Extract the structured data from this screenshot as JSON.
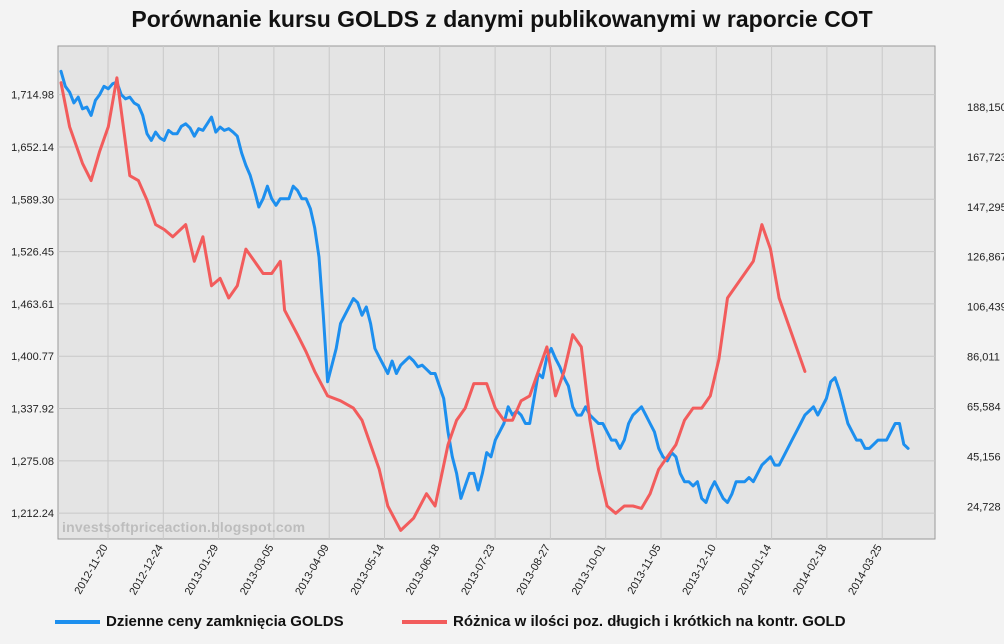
{
  "chart_data": {
    "type": "line",
    "title": "Porównanie kursu GOLDS z danymi publikowanymi w raporcie COT",
    "watermark": "investsoftpriceaction.blogspot.com",
    "x_labels": [
      "2012-11-20",
      "2012-12-24",
      "2013-01-29",
      "2013-03-05",
      "2013-04-09",
      "2013-05-14",
      "2013-06-18",
      "2013-07-23",
      "2013-08-27",
      "2013-10-01",
      "2013-11-05",
      "2013-12-10",
      "2014-01-14",
      "2014-02-18",
      "2014-03-25"
    ],
    "y_left_ticks": [
      "1,212.24",
      "1,275.08",
      "1,337.92",
      "1,400.77",
      "1,463.61",
      "1,526.45",
      "1,589.30",
      "1,652.14",
      "1,714.98"
    ],
    "y_left_range": [
      1181.2,
      1773.4
    ],
    "y_right_ticks": [
      "24,728",
      "45,156",
      "65,584",
      "86,011",
      "106,439",
      "126,867",
      "147,295",
      "167,723",
      "188,150"
    ],
    "y_right_range": [
      11500,
      213000
    ],
    "colors": {
      "gold": "#1d8fee",
      "cot": "#f25c5c"
    },
    "series": [
      {
        "name": "Dzienne ceny zamknięcia GOLDS",
        "axis": "left",
        "points": [
          [
            0,
            1743
          ],
          [
            1,
            1725
          ],
          [
            2,
            1718
          ],
          [
            3,
            1705
          ],
          [
            4,
            1712
          ],
          [
            5,
            1698
          ],
          [
            6,
            1700
          ],
          [
            7,
            1690
          ],
          [
            8,
            1708
          ],
          [
            9,
            1715
          ],
          [
            10,
            1725
          ],
          [
            11,
            1722
          ],
          [
            12,
            1728
          ],
          [
            13,
            1730
          ],
          [
            14,
            1715
          ],
          [
            15,
            1710
          ],
          [
            16,
            1712
          ],
          [
            17,
            1705
          ],
          [
            18,
            1702
          ],
          [
            19,
            1690
          ],
          [
            20,
            1668
          ],
          [
            21,
            1660
          ],
          [
            22,
            1670
          ],
          [
            23,
            1663
          ],
          [
            24,
            1660
          ],
          [
            25,
            1672
          ],
          [
            26,
            1668
          ],
          [
            27,
            1668
          ],
          [
            28,
            1677
          ],
          [
            29,
            1680
          ],
          [
            30,
            1675
          ],
          [
            31,
            1665
          ],
          [
            32,
            1674
          ],
          [
            33,
            1672
          ],
          [
            34,
            1680
          ],
          [
            35,
            1688
          ],
          [
            36,
            1670
          ],
          [
            37,
            1676
          ],
          [
            38,
            1672
          ],
          [
            39,
            1674
          ],
          [
            40,
            1670
          ],
          [
            41,
            1665
          ],
          [
            42,
            1645
          ],
          [
            43,
            1630
          ],
          [
            44,
            1618
          ],
          [
            45,
            1600
          ],
          [
            46,
            1580
          ],
          [
            47,
            1590
          ],
          [
            48,
            1605
          ],
          [
            49,
            1590
          ],
          [
            50,
            1582
          ],
          [
            51,
            1590
          ],
          [
            52,
            1590
          ],
          [
            53,
            1590
          ],
          [
            54,
            1605
          ],
          [
            55,
            1600
          ],
          [
            56,
            1590
          ],
          [
            57,
            1590
          ],
          [
            58,
            1578
          ],
          [
            59,
            1555
          ],
          [
            60,
            1520
          ],
          [
            61,
            1450
          ],
          [
            62,
            1370
          ],
          [
            63,
            1390
          ],
          [
            64,
            1410
          ],
          [
            65,
            1440
          ],
          [
            66,
            1450
          ],
          [
            67,
            1460
          ],
          [
            68,
            1470
          ],
          [
            69,
            1465
          ],
          [
            70,
            1450
          ],
          [
            71,
            1460
          ],
          [
            72,
            1440
          ],
          [
            73,
            1410
          ],
          [
            74,
            1400
          ],
          [
            75,
            1390
          ],
          [
            76,
            1380
          ],
          [
            77,
            1395
          ],
          [
            78,
            1380
          ],
          [
            79,
            1390
          ],
          [
            80,
            1395
          ],
          [
            81,
            1400
          ],
          [
            82,
            1395
          ],
          [
            83,
            1388
          ],
          [
            84,
            1390
          ],
          [
            85,
            1385
          ],
          [
            86,
            1380
          ],
          [
            87,
            1380
          ],
          [
            88,
            1365
          ],
          [
            89,
            1350
          ],
          [
            90,
            1310
          ],
          [
            91,
            1280
          ],
          [
            92,
            1260
          ],
          [
            93,
            1230
          ],
          [
            94,
            1245
          ],
          [
            95,
            1260
          ],
          [
            96,
            1260
          ],
          [
            97,
            1240
          ],
          [
            98,
            1260
          ],
          [
            99,
            1285
          ],
          [
            100,
            1280
          ],
          [
            101,
            1300
          ],
          [
            102,
            1310
          ],
          [
            103,
            1320
          ],
          [
            104,
            1340
          ],
          [
            105,
            1330
          ],
          [
            106,
            1335
          ],
          [
            107,
            1330
          ],
          [
            108,
            1320
          ],
          [
            109,
            1320
          ],
          [
            110,
            1350
          ],
          [
            111,
            1380
          ],
          [
            112,
            1375
          ],
          [
            113,
            1400
          ],
          [
            114,
            1410
          ],
          [
            115,
            1398
          ],
          [
            116,
            1388
          ],
          [
            117,
            1375
          ],
          [
            118,
            1365
          ],
          [
            119,
            1340
          ],
          [
            120,
            1330
          ],
          [
            121,
            1330
          ],
          [
            122,
            1340
          ],
          [
            123,
            1330
          ],
          [
            124,
            1325
          ],
          [
            125,
            1320
          ],
          [
            126,
            1320
          ],
          [
            127,
            1310
          ],
          [
            128,
            1300
          ],
          [
            129,
            1300
          ],
          [
            130,
            1290
          ],
          [
            131,
            1300
          ],
          [
            132,
            1320
          ],
          [
            133,
            1330
          ],
          [
            134,
            1335
          ],
          [
            135,
            1340
          ],
          [
            136,
            1330
          ],
          [
            137,
            1320
          ],
          [
            138,
            1310
          ],
          [
            139,
            1290
          ],
          [
            140,
            1280
          ],
          [
            141,
            1275
          ],
          [
            142,
            1285
          ],
          [
            143,
            1280
          ],
          [
            144,
            1260
          ],
          [
            145,
            1250
          ],
          [
            146,
            1250
          ],
          [
            147,
            1245
          ],
          [
            148,
            1250
          ],
          [
            149,
            1230
          ],
          [
            150,
            1225
          ],
          [
            151,
            1240
          ],
          [
            152,
            1250
          ],
          [
            153,
            1240
          ],
          [
            154,
            1230
          ],
          [
            155,
            1225
          ],
          [
            156,
            1235
          ],
          [
            157,
            1250
          ],
          [
            158,
            1250
          ],
          [
            159,
            1250
          ],
          [
            160,
            1255
          ],
          [
            161,
            1250
          ],
          [
            162,
            1260
          ],
          [
            163,
            1270
          ],
          [
            164,
            1275
          ],
          [
            165,
            1280
          ],
          [
            166,
            1270
          ],
          [
            167,
            1270
          ],
          [
            168,
            1280
          ],
          [
            169,
            1290
          ],
          [
            170,
            1300
          ],
          [
            171,
            1310
          ],
          [
            172,
            1320
          ],
          [
            173,
            1330
          ],
          [
            174,
            1335
          ],
          [
            175,
            1340
          ],
          [
            176,
            1330
          ],
          [
            177,
            1340
          ],
          [
            178,
            1350
          ],
          [
            179,
            1370
          ],
          [
            180,
            1375
          ],
          [
            181,
            1360
          ],
          [
            182,
            1340
          ],
          [
            183,
            1320
          ],
          [
            184,
            1310
          ],
          [
            185,
            1300
          ],
          [
            186,
            1300
          ],
          [
            187,
            1290
          ],
          [
            188,
            1290
          ],
          [
            189,
            1295
          ],
          [
            190,
            1300
          ],
          [
            191,
            1300
          ],
          [
            192,
            1300
          ],
          [
            193,
            1310
          ],
          [
            194,
            1320
          ],
          [
            195,
            1320
          ],
          [
            196,
            1295
          ],
          [
            197,
            1290
          ]
        ]
      },
      {
        "name": "Różnica w ilości poz. długich i krótkich na kontr. GOLD",
        "axis": "right",
        "points": [
          [
            0,
            198000
          ],
          [
            2,
            180000
          ],
          [
            5,
            165000
          ],
          [
            7,
            158000
          ],
          [
            9,
            170000
          ],
          [
            11,
            180000
          ],
          [
            13,
            200000
          ],
          [
            16,
            160000
          ],
          [
            18,
            158000
          ],
          [
            20,
            150000
          ],
          [
            22,
            140000
          ],
          [
            24,
            138000
          ],
          [
            26,
            135000
          ],
          [
            29,
            140000
          ],
          [
            31,
            125000
          ],
          [
            33,
            135000
          ],
          [
            35,
            115000
          ],
          [
            37,
            118000
          ],
          [
            39,
            110000
          ],
          [
            41,
            115000
          ],
          [
            43,
            130000
          ],
          [
            45,
            125000
          ],
          [
            47,
            120000
          ],
          [
            49,
            120000
          ],
          [
            51,
            125000
          ],
          [
            52,
            105000
          ],
          [
            55,
            95000
          ],
          [
            57,
            88000
          ],
          [
            59,
            80000
          ],
          [
            62,
            70000
          ],
          [
            65,
            68000
          ],
          [
            68,
            65000
          ],
          [
            70,
            60000
          ],
          [
            72,
            50000
          ],
          [
            74,
            40000
          ],
          [
            76,
            25000
          ],
          [
            79,
            15000
          ],
          [
            82,
            20000
          ],
          [
            85,
            30000
          ],
          [
            87,
            25000
          ],
          [
            90,
            50000
          ],
          [
            92,
            60000
          ],
          [
            94,
            65000
          ],
          [
            96,
            75000
          ],
          [
            99,
            75000
          ],
          [
            101,
            65000
          ],
          [
            103,
            60000
          ],
          [
            105,
            60000
          ],
          [
            107,
            68000
          ],
          [
            109,
            70000
          ],
          [
            111,
            80000
          ],
          [
            113,
            90000
          ],
          [
            115,
            70000
          ],
          [
            117,
            80000
          ],
          [
            119,
            95000
          ],
          [
            121,
            90000
          ],
          [
            123,
            60000
          ],
          [
            125,
            40000
          ],
          [
            127,
            25000
          ],
          [
            129,
            22000
          ],
          [
            131,
            25000
          ],
          [
            133,
            25000
          ],
          [
            135,
            24000
          ],
          [
            137,
            30000
          ],
          [
            139,
            40000
          ],
          [
            141,
            45000
          ],
          [
            143,
            50000
          ],
          [
            145,
            60000
          ],
          [
            147,
            65000
          ],
          [
            149,
            65000
          ],
          [
            151,
            70000
          ],
          [
            153,
            85000
          ],
          [
            155,
            110000
          ],
          [
            157,
            115000
          ],
          [
            159,
            120000
          ],
          [
            161,
            125000
          ],
          [
            163,
            140000
          ],
          [
            165,
            130000
          ],
          [
            167,
            110000
          ],
          [
            169,
            100000
          ],
          [
            171,
            90000
          ],
          [
            173,
            80000
          ]
        ]
      }
    ]
  }
}
